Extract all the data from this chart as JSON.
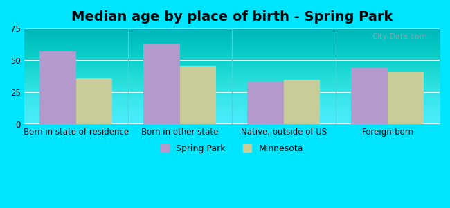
{
  "title": "Median age by place of birth - Spring Park",
  "categories": [
    "Born in state of residence",
    "Born in other state",
    "Native, outside of US",
    "Foreign-born"
  ],
  "spring_park": [
    57,
    63,
    34,
    44
  ],
  "minnesota": [
    36,
    46,
    35,
    41
  ],
  "bar_color_sp": "#b399cc",
  "bar_color_mn": "#c8cc99",
  "ylim": [
    0,
    75
  ],
  "yticks": [
    0,
    25,
    50,
    75
  ],
  "legend_sp": "Spring Park",
  "legend_mn": "Minnesota",
  "background_top": "#e8f8f0",
  "background_bottom": "#d0f0e0",
  "outer_bg": "#00e5ff",
  "title_fontsize": 14,
  "tick_fontsize": 8.5,
  "legend_fontsize": 9
}
